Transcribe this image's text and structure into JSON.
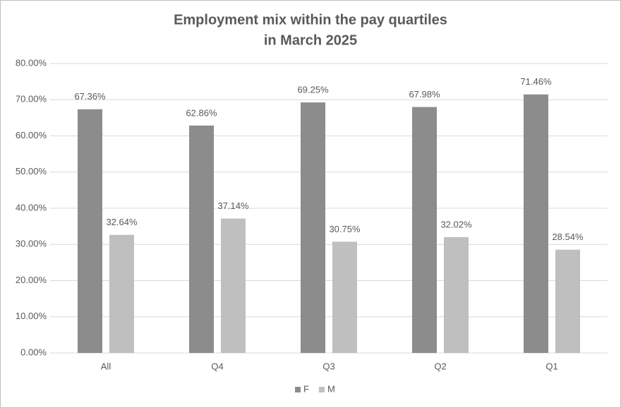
{
  "chart_data": {
    "type": "bar",
    "title": [
      "Employment mix within the pay quartiles",
      "in March 2025"
    ],
    "categories": [
      "All",
      "Q4",
      "Q3",
      "Q2",
      "Q1"
    ],
    "series": [
      {
        "name": "F",
        "color": "#8c8c8c",
        "values": [
          67.36,
          62.86,
          69.25,
          67.98,
          71.46
        ],
        "value_labels": [
          "67.36%",
          "62.86%",
          "69.25%",
          "67.98%",
          "71.46%"
        ]
      },
      {
        "name": "M",
        "color": "#bfbfbf",
        "values": [
          32.64,
          37.14,
          30.75,
          32.02,
          28.54
        ],
        "value_labels": [
          "32.64%",
          "37.14%",
          "30.75%",
          "32.02%",
          "28.54%"
        ]
      }
    ],
    "ylim": [
      0,
      80
    ],
    "yticks": [
      {
        "value": 0,
        "label": "0.00%"
      },
      {
        "value": 10,
        "label": "10.00%"
      },
      {
        "value": 20,
        "label": "20.00%"
      },
      {
        "value": 30,
        "label": "30.00%"
      },
      {
        "value": 40,
        "label": "40.00%"
      },
      {
        "value": 50,
        "label": "50.00%"
      },
      {
        "value": 60,
        "label": "60.00%"
      },
      {
        "value": 70,
        "label": "70.00%"
      },
      {
        "value": 80,
        "label": "80.00%"
      }
    ],
    "grid": true,
    "legend": "bottom"
  }
}
